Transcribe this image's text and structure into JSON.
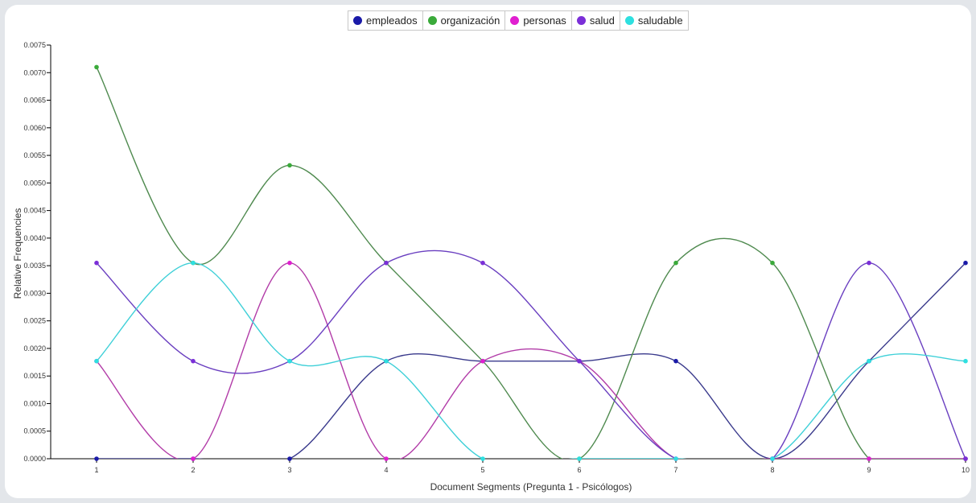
{
  "chart_data": {
    "type": "line",
    "xlabel": "Document Segments (Pregunta 1 - Psicólogos)",
    "ylabel": "Relative Frequencies",
    "x": [
      1,
      2,
      3,
      4,
      5,
      6,
      7,
      8,
      9,
      10
    ],
    "x_tick_labels": [
      "1",
      "2",
      "3",
      "4",
      "5",
      "6",
      "7",
      "8",
      "9",
      "10"
    ],
    "ylim": [
      0,
      0.0075
    ],
    "y_ticks": [
      "0.0000",
      "0.0005",
      "0.0010",
      "0.0015",
      "0.0020",
      "0.0025",
      "0.0030",
      "0.0035",
      "0.0040",
      "0.0045",
      "0.0050",
      "0.0055",
      "0.0060",
      "0.0065",
      "0.0070",
      "0.0075"
    ],
    "grid": false,
    "legend_position": "top-center",
    "series": [
      {
        "name": "empleados",
        "color": "#1a1aa8",
        "line_color": "#3a3a8c",
        "values": [
          0,
          0,
          0,
          0.00177,
          0.00177,
          0.00177,
          0.00177,
          0,
          0.00177,
          0.00355
        ]
      },
      {
        "name": "organización",
        "color": "#3aaa3a",
        "line_color": "#4f8a4f",
        "values": [
          0.0071,
          0.00355,
          0.00532,
          0.00355,
          0.00177,
          0,
          0.00355,
          0.00355,
          0,
          0
        ]
      },
      {
        "name": "personas",
        "color": "#e01fd0",
        "line_color": "#b23ca8",
        "values": [
          0.00177,
          0,
          0.00355,
          0,
          0.00177,
          0.00177,
          0,
          0,
          0,
          0
        ]
      },
      {
        "name": "salud",
        "color": "#7b2fd8",
        "line_color": "#6a3fc0",
        "values": [
          0.00355,
          0.00177,
          0.00177,
          0.00355,
          0.00355,
          0.00177,
          0,
          0,
          0.00355,
          0
        ]
      },
      {
        "name": "saludable",
        "color": "#2ee0e0",
        "line_color": "#3fd0d8",
        "values": [
          0.00177,
          0.00355,
          0.00177,
          0.00177,
          0,
          0,
          0,
          0,
          0.00177,
          0.00177
        ]
      }
    ]
  }
}
